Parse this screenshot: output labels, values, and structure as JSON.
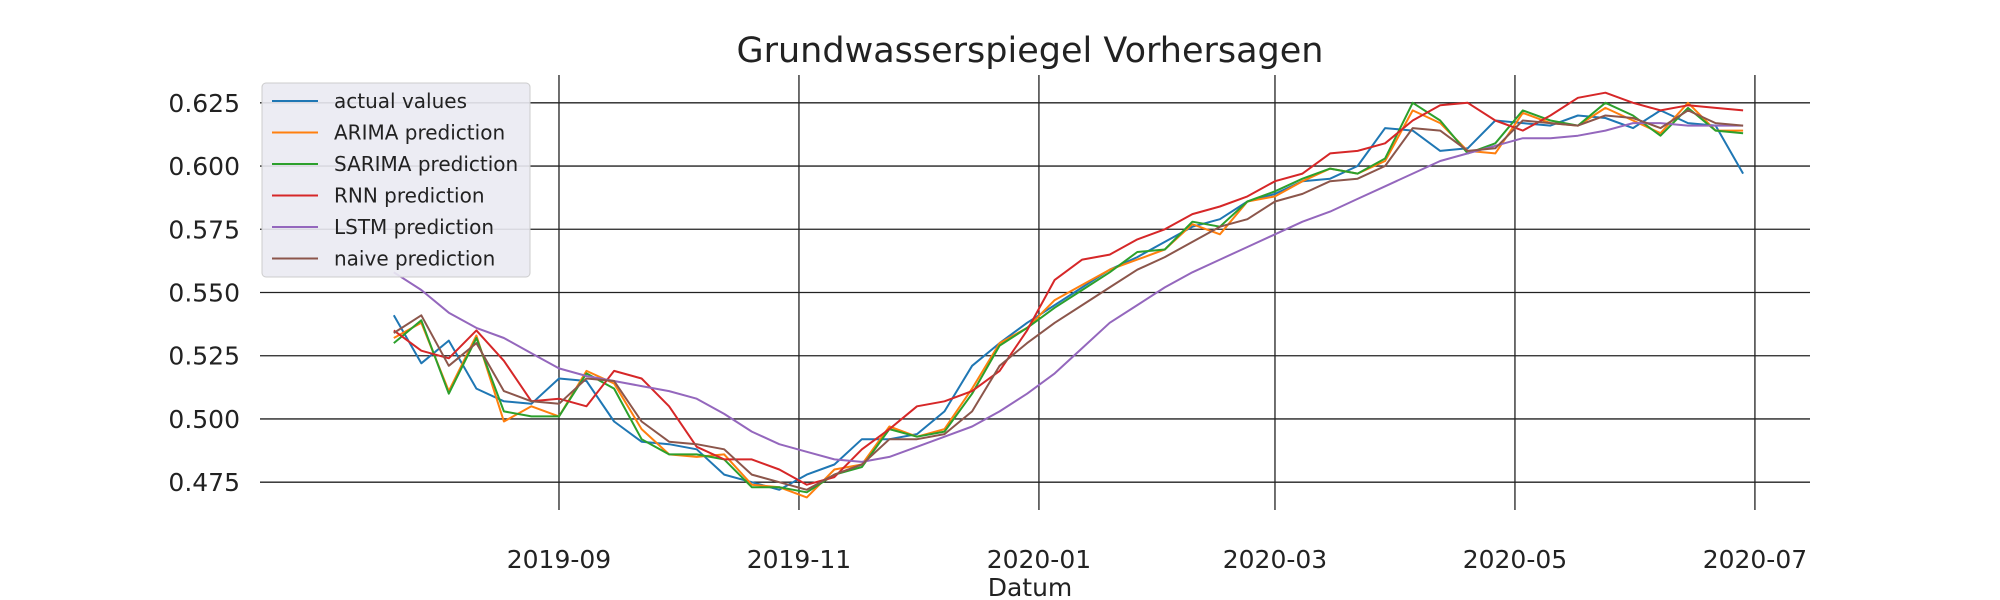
{
  "chart_data": {
    "type": "line",
    "title": "Grundwasserspiegel Vorhersagen",
    "xlabel": "Datum",
    "ylabel": "",
    "x_tick_labels": [
      "2019-09",
      "2019-11",
      "2020-01",
      "2020-03",
      "2020-05",
      "2020-07"
    ],
    "x_tick_days": [
      62,
      123,
      184,
      244,
      305,
      366
    ],
    "xlim_days": [
      -14,
      380
    ],
    "x_reference": "2019-07-01",
    "y_ticks": [
      0.475,
      0.5,
      0.525,
      0.55,
      0.575,
      0.6,
      0.625
    ],
    "y_tick_labels": [
      "0.475",
      "0.500",
      "0.525",
      "0.550",
      "0.575",
      "0.600",
      "0.625"
    ],
    "ylim": [
      0.464,
      0.636
    ],
    "grid": true,
    "legend_position": "top-left",
    "x_days": [
      20,
      27,
      34,
      41,
      48,
      55,
      62,
      69,
      76,
      83,
      90,
      97,
      104,
      111,
      118,
      125,
      132,
      139,
      146,
      153,
      160,
      167,
      174,
      181,
      188,
      195,
      202,
      209,
      216,
      223,
      230,
      237,
      244,
      251,
      258,
      265,
      272,
      279,
      286,
      293,
      300,
      307,
      314,
      321,
      328,
      335,
      342,
      349,
      356,
      363
    ],
    "series": [
      {
        "name": "actual values",
        "color": "#1f77b4",
        "values": [
          0.541,
          0.522,
          0.531,
          0.512,
          0.507,
          0.506,
          0.516,
          0.515,
          0.499,
          0.491,
          0.49,
          0.488,
          0.478,
          0.475,
          0.472,
          0.478,
          0.482,
          0.492,
          0.492,
          0.494,
          0.503,
          0.521,
          0.53,
          0.538,
          0.545,
          0.552,
          0.559,
          0.564,
          0.57,
          0.576,
          0.579,
          0.586,
          0.589,
          0.594,
          0.595,
          0.6,
          0.615,
          0.614,
          0.606,
          0.607,
          0.618,
          0.617,
          0.616,
          0.62,
          0.619,
          0.615,
          0.622,
          0.617,
          0.616,
          0.597
        ]
      },
      {
        "name": "ARIMA prediction",
        "color": "#ff7f0e",
        "values": [
          0.532,
          0.538,
          0.511,
          0.533,
          0.499,
          0.505,
          0.501,
          0.519,
          0.514,
          0.496,
          0.486,
          0.485,
          0.486,
          0.474,
          0.473,
          0.469,
          0.48,
          0.482,
          0.497,
          0.493,
          0.496,
          0.512,
          0.53,
          0.536,
          0.547,
          0.553,
          0.559,
          0.563,
          0.567,
          0.577,
          0.573,
          0.586,
          0.588,
          0.594,
          0.599,
          0.597,
          0.602,
          0.622,
          0.617,
          0.606,
          0.605,
          0.621,
          0.617,
          0.616,
          0.623,
          0.618,
          0.613,
          0.625,
          0.614,
          0.614
        ]
      },
      {
        "name": "SARIMA prediction",
        "color": "#2ca02c",
        "values": [
          0.53,
          0.539,
          0.51,
          0.532,
          0.503,
          0.501,
          0.501,
          0.518,
          0.512,
          0.492,
          0.486,
          0.486,
          0.484,
          0.473,
          0.473,
          0.471,
          0.478,
          0.481,
          0.496,
          0.493,
          0.495,
          0.51,
          0.529,
          0.536,
          0.544,
          0.551,
          0.558,
          0.566,
          0.567,
          0.578,
          0.576,
          0.586,
          0.59,
          0.595,
          0.599,
          0.597,
          0.603,
          0.625,
          0.618,
          0.605,
          0.609,
          0.622,
          0.618,
          0.616,
          0.625,
          0.62,
          0.612,
          0.623,
          0.614,
          0.613
        ]
      },
      {
        "name": "RNN prediction",
        "color": "#d62728",
        "values": [
          0.535,
          0.527,
          0.524,
          0.535,
          0.523,
          0.507,
          0.508,
          0.505,
          0.519,
          0.516,
          0.505,
          0.489,
          0.484,
          0.484,
          0.48,
          0.474,
          0.477,
          0.488,
          0.496,
          0.505,
          0.507,
          0.511,
          0.519,
          0.535,
          0.555,
          0.563,
          0.565,
          0.571,
          0.575,
          0.581,
          0.584,
          0.588,
          0.594,
          0.597,
          0.605,
          0.606,
          0.609,
          0.618,
          0.624,
          0.625,
          0.618,
          0.614,
          0.62,
          0.627,
          0.629,
          0.625,
          0.622,
          0.624,
          0.623,
          0.622
        ]
      },
      {
        "name": "LSTM prediction",
        "color": "#9467bd",
        "values": [
          0.558,
          0.551,
          0.542,
          0.536,
          0.532,
          0.526,
          0.52,
          0.517,
          0.515,
          0.513,
          0.511,
          0.508,
          0.502,
          0.495,
          0.49,
          0.487,
          0.484,
          0.483,
          0.485,
          0.489,
          0.493,
          0.497,
          0.503,
          0.51,
          0.518,
          0.528,
          0.538,
          0.545,
          0.552,
          0.558,
          0.563,
          0.568,
          0.573,
          0.578,
          0.582,
          0.587,
          0.592,
          0.597,
          0.602,
          0.605,
          0.608,
          0.611,
          0.611,
          0.612,
          0.614,
          0.617,
          0.617,
          0.616,
          0.616,
          0.616
        ]
      },
      {
        "name": "naive prediction",
        "color": "#8c564b",
        "values": [
          0.534,
          0.541,
          0.521,
          0.53,
          0.511,
          0.507,
          0.506,
          0.516,
          0.515,
          0.499,
          0.491,
          0.49,
          0.488,
          0.478,
          0.475,
          0.472,
          0.478,
          0.482,
          0.492,
          0.492,
          0.494,
          0.503,
          0.521,
          0.53,
          0.538,
          0.545,
          0.552,
          0.559,
          0.564,
          0.57,
          0.576,
          0.579,
          0.586,
          0.589,
          0.594,
          0.595,
          0.6,
          0.615,
          0.614,
          0.606,
          0.607,
          0.618,
          0.617,
          0.616,
          0.62,
          0.619,
          0.615,
          0.622,
          0.617,
          0.616
        ]
      }
    ]
  }
}
